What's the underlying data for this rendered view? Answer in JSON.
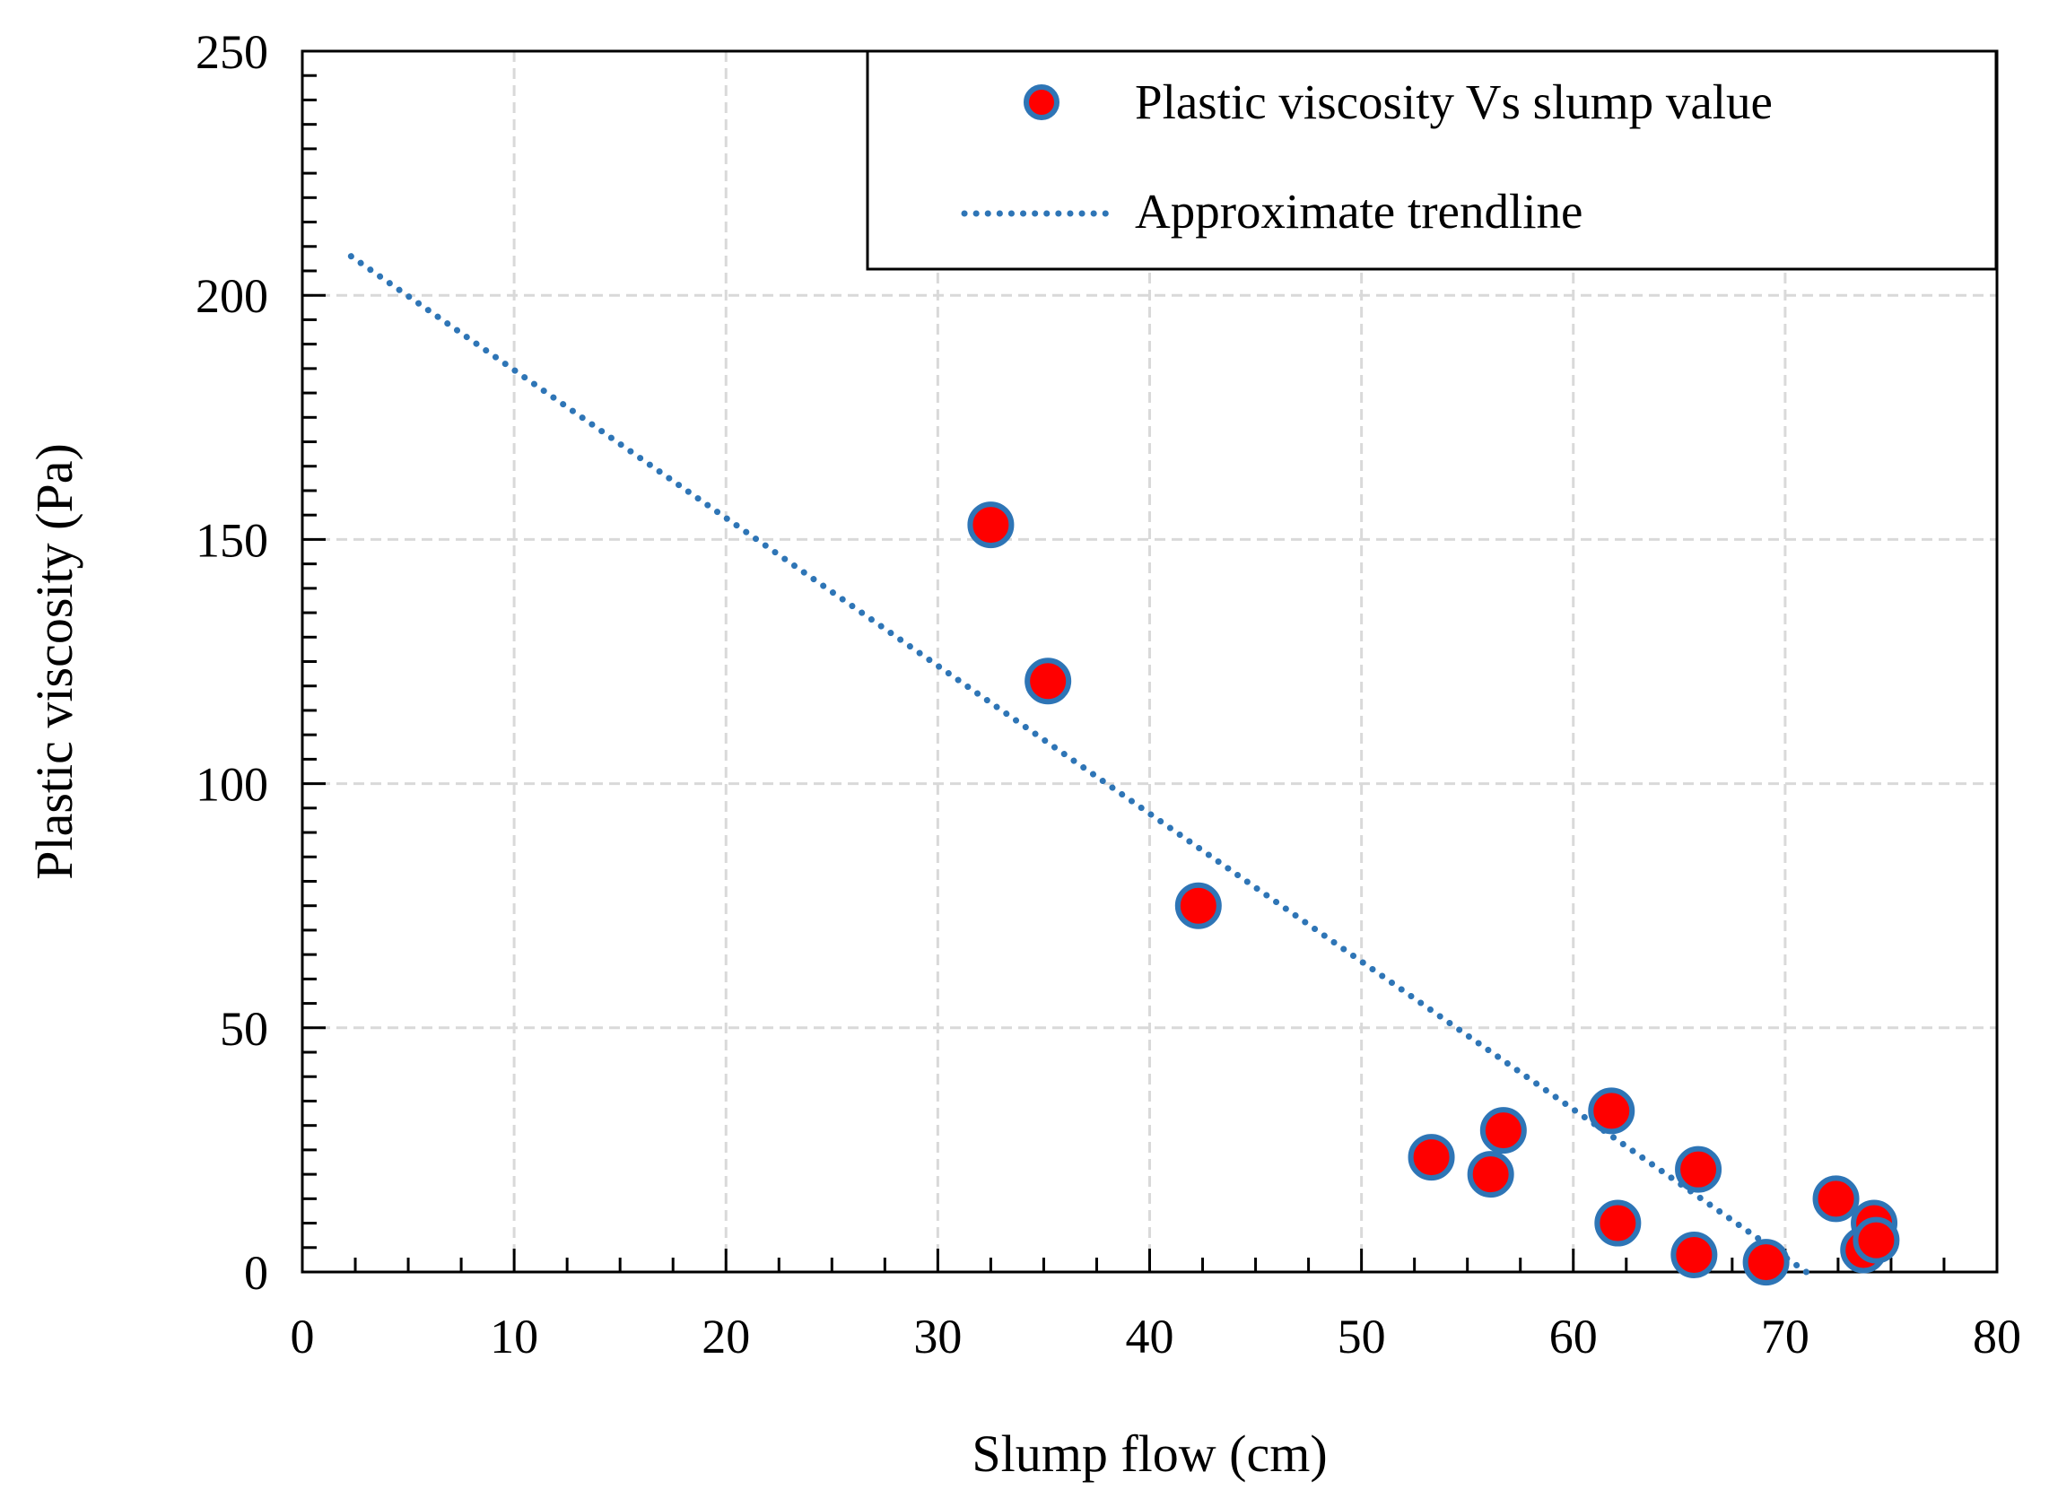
{
  "chart_data": {
    "type": "scatter",
    "xlabel": "Slump flow (cm)",
    "ylabel": "Plastic viscosity (Pa)",
    "xlim": [
      0,
      80
    ],
    "ylim": [
      0,
      250
    ],
    "x_ticks": [
      "0",
      "10",
      "20",
      "30",
      "40",
      "50",
      "60",
      "70",
      "80"
    ],
    "y_ticks": [
      "0",
      "50",
      "100",
      "150",
      "200",
      "250"
    ],
    "grid": true,
    "legend_position": "top-right",
    "series": [
      {
        "name": "Plastic viscosity Vs slump value",
        "kind": "scatter",
        "points": [
          {
            "x": 32.5,
            "y": 153
          },
          {
            "x": 35.2,
            "y": 121
          },
          {
            "x": 42.3,
            "y": 75
          },
          {
            "x": 53.3,
            "y": 23.5
          },
          {
            "x": 56.1,
            "y": 20
          },
          {
            "x": 56.7,
            "y": 29
          },
          {
            "x": 61.8,
            "y": 33
          },
          {
            "x": 62.1,
            "y": 10
          },
          {
            "x": 65.7,
            "y": 3.5
          },
          {
            "x": 65.9,
            "y": 21
          },
          {
            "x": 69.1,
            "y": 2
          },
          {
            "x": 72.4,
            "y": 15
          },
          {
            "x": 73.7,
            "y": 4.5
          },
          {
            "x": 74.2,
            "y": 10
          },
          {
            "x": 74.3,
            "y": 6.5
          }
        ]
      },
      {
        "name": "Approximate trendline",
        "kind": "dotted-line",
        "points": [
          {
            "x": 2.3,
            "y": 208
          },
          {
            "x": 71,
            "y": 0
          }
        ]
      }
    ],
    "colors": {
      "marker_fill": "#ff0000",
      "marker_edge": "#2e75b6",
      "trendline": "#2e75b6",
      "grid": "#d9d9d9",
      "axis": "#000000"
    }
  }
}
